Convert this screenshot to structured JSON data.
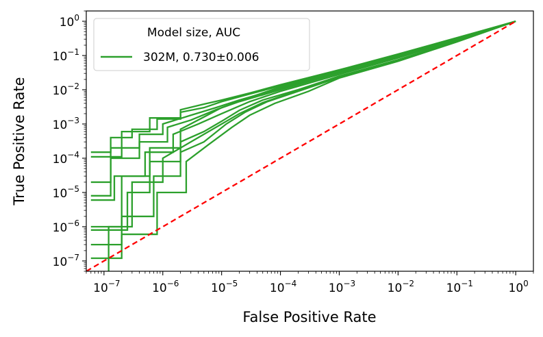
{
  "chart_data": {
    "type": "line",
    "xlabel": "False Positive Rate",
    "ylabel": "True Positive Rate",
    "xscale": "log",
    "yscale": "log",
    "xlim": [
      5e-08,
      2
    ],
    "ylim": [
      5e-08,
      2
    ],
    "x_ticks": [
      {
        "value": 1e-07,
        "base": "10",
        "exp": "−7"
      },
      {
        "value": 1e-06,
        "base": "10",
        "exp": "−6"
      },
      {
        "value": 1e-05,
        "base": "10",
        "exp": "−5"
      },
      {
        "value": 0.0001,
        "base": "10",
        "exp": "−4"
      },
      {
        "value": 0.001,
        "base": "10",
        "exp": "−3"
      },
      {
        "value": 0.01,
        "base": "10",
        "exp": "−2"
      },
      {
        "value": 0.1,
        "base": "10",
        "exp": "−1"
      },
      {
        "value": 1,
        "base": "10",
        "exp": "0"
      }
    ],
    "y_ticks": [
      {
        "value": 1e-07,
        "base": "10",
        "exp": "−7"
      },
      {
        "value": 1e-06,
        "base": "10",
        "exp": "−6"
      },
      {
        "value": 1e-05,
        "base": "10",
        "exp": "−5"
      },
      {
        "value": 0.0001,
        "base": "10",
        "exp": "−4"
      },
      {
        "value": 0.001,
        "base": "10",
        "exp": "−3"
      },
      {
        "value": 0.01,
        "base": "10",
        "exp": "−2"
      },
      {
        "value": 0.1,
        "base": "10",
        "exp": "−1"
      },
      {
        "value": 1,
        "base": "10",
        "exp": "0"
      }
    ],
    "legend": {
      "title": "Model size, AUC",
      "entries": [
        {
          "label": "302M, 0.730±0.006",
          "color": "#2ca02c"
        }
      ],
      "placement": "upper-left"
    },
    "series_color": "#2ca02c",
    "diagonal": {
      "style": "dashed",
      "color": "#ff0000",
      "points": [
        [
          5e-08,
          5e-08
        ],
        [
          1,
          1
        ]
      ]
    },
    "series": [
      {
        "points": [
          [
            6e-08,
            0.00015
          ],
          [
            1.3e-07,
            0.00015
          ],
          [
            1.3e-07,
            0.0004
          ],
          [
            3e-07,
            0.0004
          ],
          [
            3e-07,
            0.0007
          ],
          [
            8e-07,
            0.0007
          ],
          [
            8e-07,
            0.0014
          ],
          [
            2e-06,
            0.0014
          ],
          [
            2e-06,
            0.0022
          ],
          [
            5e-06,
            0.003
          ],
          [
            1e-05,
            0.0045
          ],
          [
            3e-05,
            0.0075
          ],
          [
            0.0001,
            0.013
          ],
          [
            0.001,
            0.035
          ],
          [
            0.01,
            0.1
          ],
          [
            0.1,
            0.32
          ],
          [
            1,
            1
          ]
        ]
      },
      {
        "points": [
          [
            6e-08,
            0.00011
          ],
          [
            2e-07,
            0.00011
          ],
          [
            2e-07,
            0.0006
          ],
          [
            6e-07,
            0.0006
          ],
          [
            6e-07,
            0.0015
          ],
          [
            2e-06,
            0.0015
          ],
          [
            2e-06,
            0.0026
          ],
          [
            5e-06,
            0.0038
          ],
          [
            1e-05,
            0.005
          ],
          [
            3e-05,
            0.008
          ],
          [
            0.0001,
            0.014
          ],
          [
            0.001,
            0.038
          ],
          [
            0.01,
            0.11
          ],
          [
            0.1,
            0.33
          ],
          [
            1,
            1
          ]
        ]
      },
      {
        "points": [
          [
            6e-08,
            2e-05
          ],
          [
            1.3e-07,
            2e-05
          ],
          [
            1.3e-07,
            0.0002
          ],
          [
            4e-07,
            0.0002
          ],
          [
            4e-07,
            0.0005
          ],
          [
            1e-06,
            0.0005
          ],
          [
            1e-06,
            0.001
          ],
          [
            3e-06,
            0.0018
          ],
          [
            8e-06,
            0.003
          ],
          [
            2e-05,
            0.005
          ],
          [
            0.0001,
            0.011
          ],
          [
            0.001,
            0.033
          ],
          [
            0.01,
            0.095
          ],
          [
            0.1,
            0.31
          ],
          [
            1,
            1
          ]
        ]
      },
      {
        "points": [
          [
            6e-08,
            8e-06
          ],
          [
            1.3e-07,
            8e-06
          ],
          [
            1.3e-07,
            0.0001
          ],
          [
            4e-07,
            0.0001
          ],
          [
            4e-07,
            0.0003
          ],
          [
            1.2e-06,
            0.0003
          ],
          [
            1.2e-06,
            0.0008
          ],
          [
            3e-06,
            0.0013
          ],
          [
            8e-06,
            0.0026
          ],
          [
            2e-05,
            0.0045
          ],
          [
            0.0001,
            0.01
          ],
          [
            0.001,
            0.031
          ],
          [
            0.01,
            0.09
          ],
          [
            0.1,
            0.3
          ],
          [
            1,
            1
          ]
        ]
      },
      {
        "points": [
          [
            6e-08,
            1e-06
          ],
          [
            2e-07,
            1e-06
          ],
          [
            2e-07,
            3e-05
          ],
          [
            5e-07,
            3e-05
          ],
          [
            5e-07,
            0.00015
          ],
          [
            1.5e-06,
            0.00015
          ],
          [
            1.5e-06,
            0.0005
          ],
          [
            4e-06,
            0.001
          ],
          [
            1e-05,
            0.002
          ],
          [
            3e-05,
            0.0045
          ],
          [
            0.0001,
            0.009
          ],
          [
            0.001,
            0.028
          ],
          [
            0.01,
            0.085
          ],
          [
            0.1,
            0.29
          ],
          [
            1,
            1
          ]
        ]
      },
      {
        "points": [
          [
            6e-08,
            8e-07
          ],
          [
            2.5e-07,
            8e-07
          ],
          [
            2.5e-07,
            1e-05
          ],
          [
            6e-07,
            1e-05
          ],
          [
            6e-07,
            8e-05
          ],
          [
            2e-06,
            8e-05
          ],
          [
            2e-06,
            0.0003
          ],
          [
            5e-06,
            0.0006
          ],
          [
            1e-05,
            0.0012
          ],
          [
            2e-05,
            0.0025
          ],
          [
            5e-05,
            0.005
          ],
          [
            0.0002,
            0.01
          ],
          [
            0.001,
            0.025
          ],
          [
            0.01,
            0.075
          ],
          [
            0.1,
            0.27
          ],
          [
            1,
            1
          ]
        ]
      },
      {
        "points": [
          [
            6e-08,
            3e-07
          ],
          [
            2e-07,
            3e-07
          ],
          [
            2e-07,
            2e-06
          ],
          [
            7e-07,
            2e-06
          ],
          [
            7e-07,
            3e-05
          ],
          [
            2e-06,
            3e-05
          ],
          [
            2e-06,
            0.00015
          ],
          [
            5e-06,
            0.0003
          ],
          [
            1.2e-05,
            0.001
          ],
          [
            2.5e-05,
            0.0022
          ],
          [
            6e-05,
            0.0045
          ],
          [
            0.0002,
            0.009
          ],
          [
            0.001,
            0.023
          ],
          [
            0.01,
            0.07
          ],
          [
            0.1,
            0.26
          ],
          [
            1,
            1
          ]
        ]
      },
      {
        "points": [
          [
            6e-08,
            6e-06
          ],
          [
            1.5e-07,
            6e-06
          ],
          [
            1.5e-07,
            3e-05
          ],
          [
            6e-07,
            3e-05
          ],
          [
            6e-07,
            0.0002
          ],
          [
            2e-06,
            0.0002
          ],
          [
            2e-06,
            0.0007
          ],
          [
            5e-06,
            0.0016
          ],
          [
            1e-05,
            0.003
          ],
          [
            3e-05,
            0.006
          ],
          [
            0.0001,
            0.012
          ],
          [
            0.001,
            0.034
          ],
          [
            0.01,
            0.1
          ],
          [
            0.1,
            0.32
          ],
          [
            1,
            1
          ]
        ]
      },
      {
        "points": [
          [
            1.2e-07,
            5e-08
          ],
          [
            1.2e-07,
            1e-06
          ],
          [
            3e-07,
            1e-06
          ],
          [
            3e-07,
            2e-05
          ],
          [
            1e-06,
            2e-05
          ],
          [
            1e-06,
            0.0001
          ],
          [
            3e-06,
            0.0003
          ],
          [
            8e-06,
            0.0008
          ],
          [
            2e-05,
            0.002
          ],
          [
            5e-05,
            0.0042
          ],
          [
            0.0002,
            0.0095
          ],
          [
            0.001,
            0.024
          ],
          [
            0.01,
            0.072
          ],
          [
            0.1,
            0.26
          ],
          [
            1,
            1
          ]
        ]
      },
      {
        "points": [
          [
            6e-08,
            1.2e-07
          ],
          [
            2e-07,
            1.2e-07
          ],
          [
            2e-07,
            6e-07
          ],
          [
            8e-07,
            6e-07
          ],
          [
            8e-07,
            1e-05
          ],
          [
            2.5e-06,
            1e-05
          ],
          [
            2.5e-06,
            8e-05
          ],
          [
            6e-06,
            0.00025
          ],
          [
            1.5e-05,
            0.0008
          ],
          [
            3e-05,
            0.0018
          ],
          [
            8e-05,
            0.004
          ],
          [
            0.0003,
            0.009
          ],
          [
            0.001,
            0.022
          ],
          [
            0.01,
            0.068
          ],
          [
            0.1,
            0.25
          ],
          [
            1,
            1
          ]
        ]
      }
    ]
  }
}
